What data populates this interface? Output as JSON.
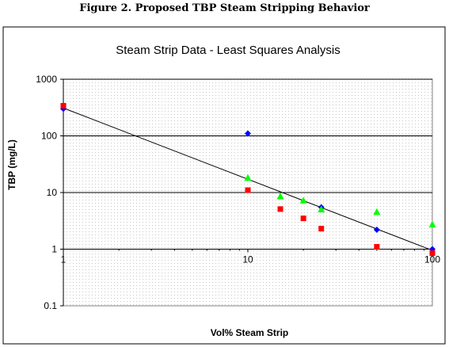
{
  "figure_title": "Figure 2.  Proposed TBP Steam Stripping Behavior",
  "chart_data": {
    "type": "scatter",
    "title": "Steam Strip Data - Least Squares Analysis",
    "xlabel": "Vol%  Steam Strip",
    "ylabel": "TBP (mg/L)",
    "x_scale": "log",
    "y_scale": "log",
    "xlim": [
      1,
      100
    ],
    "ylim": [
      0.1,
      1000
    ],
    "x_ticks": [
      1,
      10,
      100
    ],
    "x_tick_labels": [
      "1",
      "10",
      "100"
    ],
    "y_ticks": [
      0.1,
      1,
      10,
      100,
      1000
    ],
    "y_tick_labels": [
      "0.1",
      "1",
      "10",
      "100",
      "1000"
    ],
    "grid": "horizontal major",
    "legend": "none",
    "series": [
      {
        "marker": "diamond",
        "color": "#0000ff",
        "points": [
          [
            1,
            300
          ],
          [
            10,
            110
          ],
          [
            25,
            5.5
          ],
          [
            50,
            2.2
          ],
          [
            100,
            1.0
          ]
        ]
      },
      {
        "marker": "square",
        "color": "#ff0000",
        "points": [
          [
            1,
            340
          ],
          [
            10,
            11
          ],
          [
            15,
            5.1
          ],
          [
            20,
            3.5
          ],
          [
            25,
            2.3
          ],
          [
            50,
            1.1
          ],
          [
            100,
            0.85
          ]
        ]
      },
      {
        "marker": "triangle",
        "color": "#00ff00",
        "points": [
          [
            10,
            18
          ],
          [
            15,
            8.5
          ],
          [
            20,
            7.2
          ],
          [
            25,
            5.0
          ],
          [
            50,
            4.5
          ],
          [
            100,
            2.7
          ]
        ]
      }
    ],
    "trendline": {
      "type": "least-squares",
      "color": "#000000",
      "points": [
        [
          1,
          310
        ],
        [
          100,
          0.95
        ]
      ]
    }
  }
}
